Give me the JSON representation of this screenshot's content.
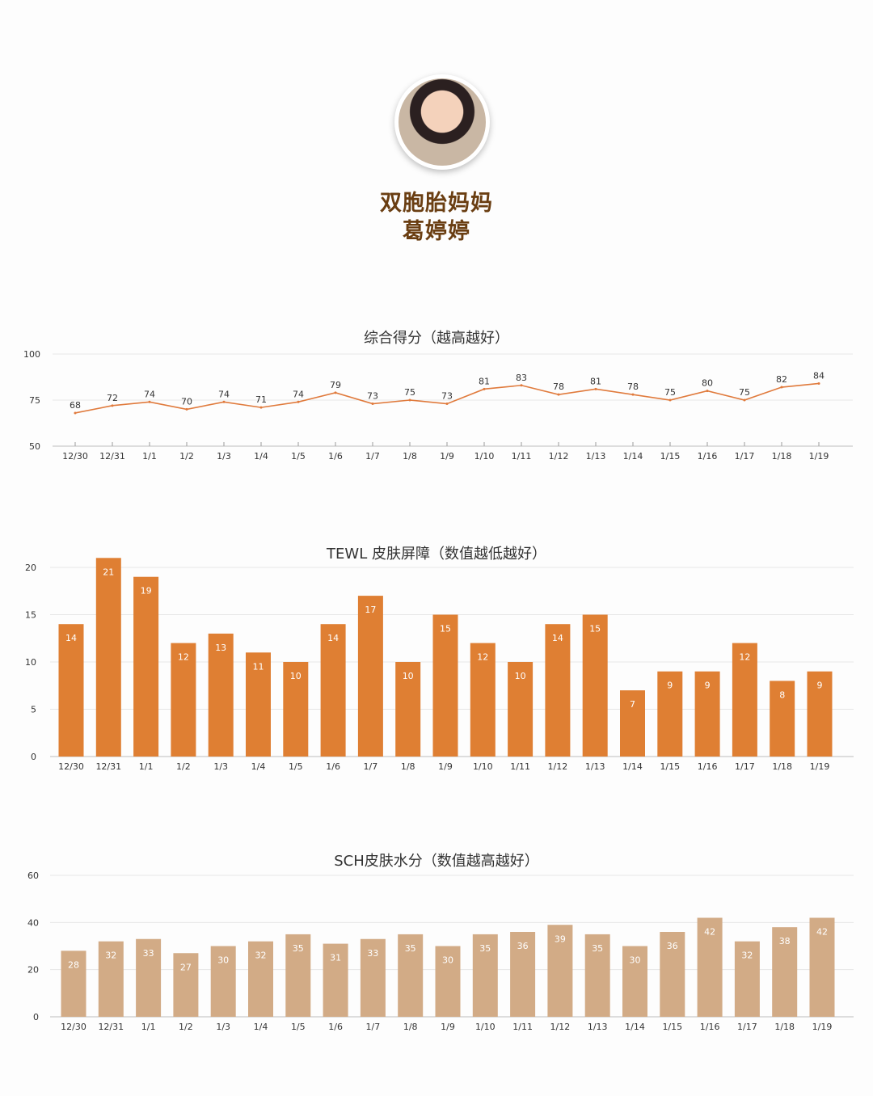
{
  "profile": {
    "avatar_icon": "woman-portrait-avatar",
    "title": "双胞胎妈妈",
    "name": "葛婷婷"
  },
  "colors": {
    "name": "#6a3e12",
    "line": "#e07a3c",
    "tewl_bar": "#df7f33",
    "sch_bar": "#d2ab86",
    "grid": "#e6e6e6"
  },
  "chart_data": [
    {
      "type": "line",
      "title": "综合得分（越高越好）",
      "categories": [
        "12/30",
        "12/31",
        "1/1",
        "1/2",
        "1/3",
        "1/4",
        "1/5",
        "1/6",
        "1/7",
        "1/8",
        "1/9",
        "1/10",
        "1/11",
        "1/12",
        "1/13",
        "1/14",
        "1/15",
        "1/16",
        "1/17",
        "1/18",
        "1/19"
      ],
      "values": [
        68,
        72,
        74,
        70,
        74,
        71,
        74,
        79,
        73,
        75,
        73,
        81,
        83,
        78,
        81,
        78,
        75,
        80,
        75,
        82,
        84
      ],
      "yticks": [
        50,
        75,
        100
      ],
      "ylim": [
        50,
        100
      ],
      "grid": true
    },
    {
      "type": "bar",
      "title": "TEWL 皮肤屏障（数值越低越好）",
      "categories": [
        "12/30",
        "12/31",
        "1/1",
        "1/2",
        "1/3",
        "1/4",
        "1/5",
        "1/6",
        "1/7",
        "1/8",
        "1/9",
        "1/10",
        "1/11",
        "1/12",
        "1/13",
        "1/14",
        "1/15",
        "1/16",
        "1/17",
        "1/18",
        "1/19"
      ],
      "values": [
        14,
        21,
        19,
        12,
        13,
        11,
        10,
        14,
        17,
        10,
        15,
        12,
        10,
        14,
        15,
        7,
        9,
        9,
        12,
        8,
        9
      ],
      "yticks": [
        0,
        5,
        10,
        15,
        20
      ],
      "ylim": [
        0,
        20
      ],
      "grid": true
    },
    {
      "type": "bar",
      "title": "SCH皮肤水分（数值越高越好）",
      "categories": [
        "12/30",
        "12/31",
        "1/1",
        "1/2",
        "1/3",
        "1/4",
        "1/5",
        "1/6",
        "1/7",
        "1/8",
        "1/9",
        "1/10",
        "1/11",
        "1/12",
        "1/13",
        "1/14",
        "1/15",
        "1/16",
        "1/17",
        "1/18",
        "1/19"
      ],
      "values": [
        28,
        32,
        33,
        27,
        30,
        32,
        35,
        31,
        33,
        35,
        30,
        35,
        36,
        39,
        35,
        30,
        36,
        42,
        32,
        38,
        42
      ],
      "yticks": [
        0,
        20,
        40,
        60
      ],
      "ylim": [
        0,
        60
      ],
      "grid": true
    }
  ]
}
